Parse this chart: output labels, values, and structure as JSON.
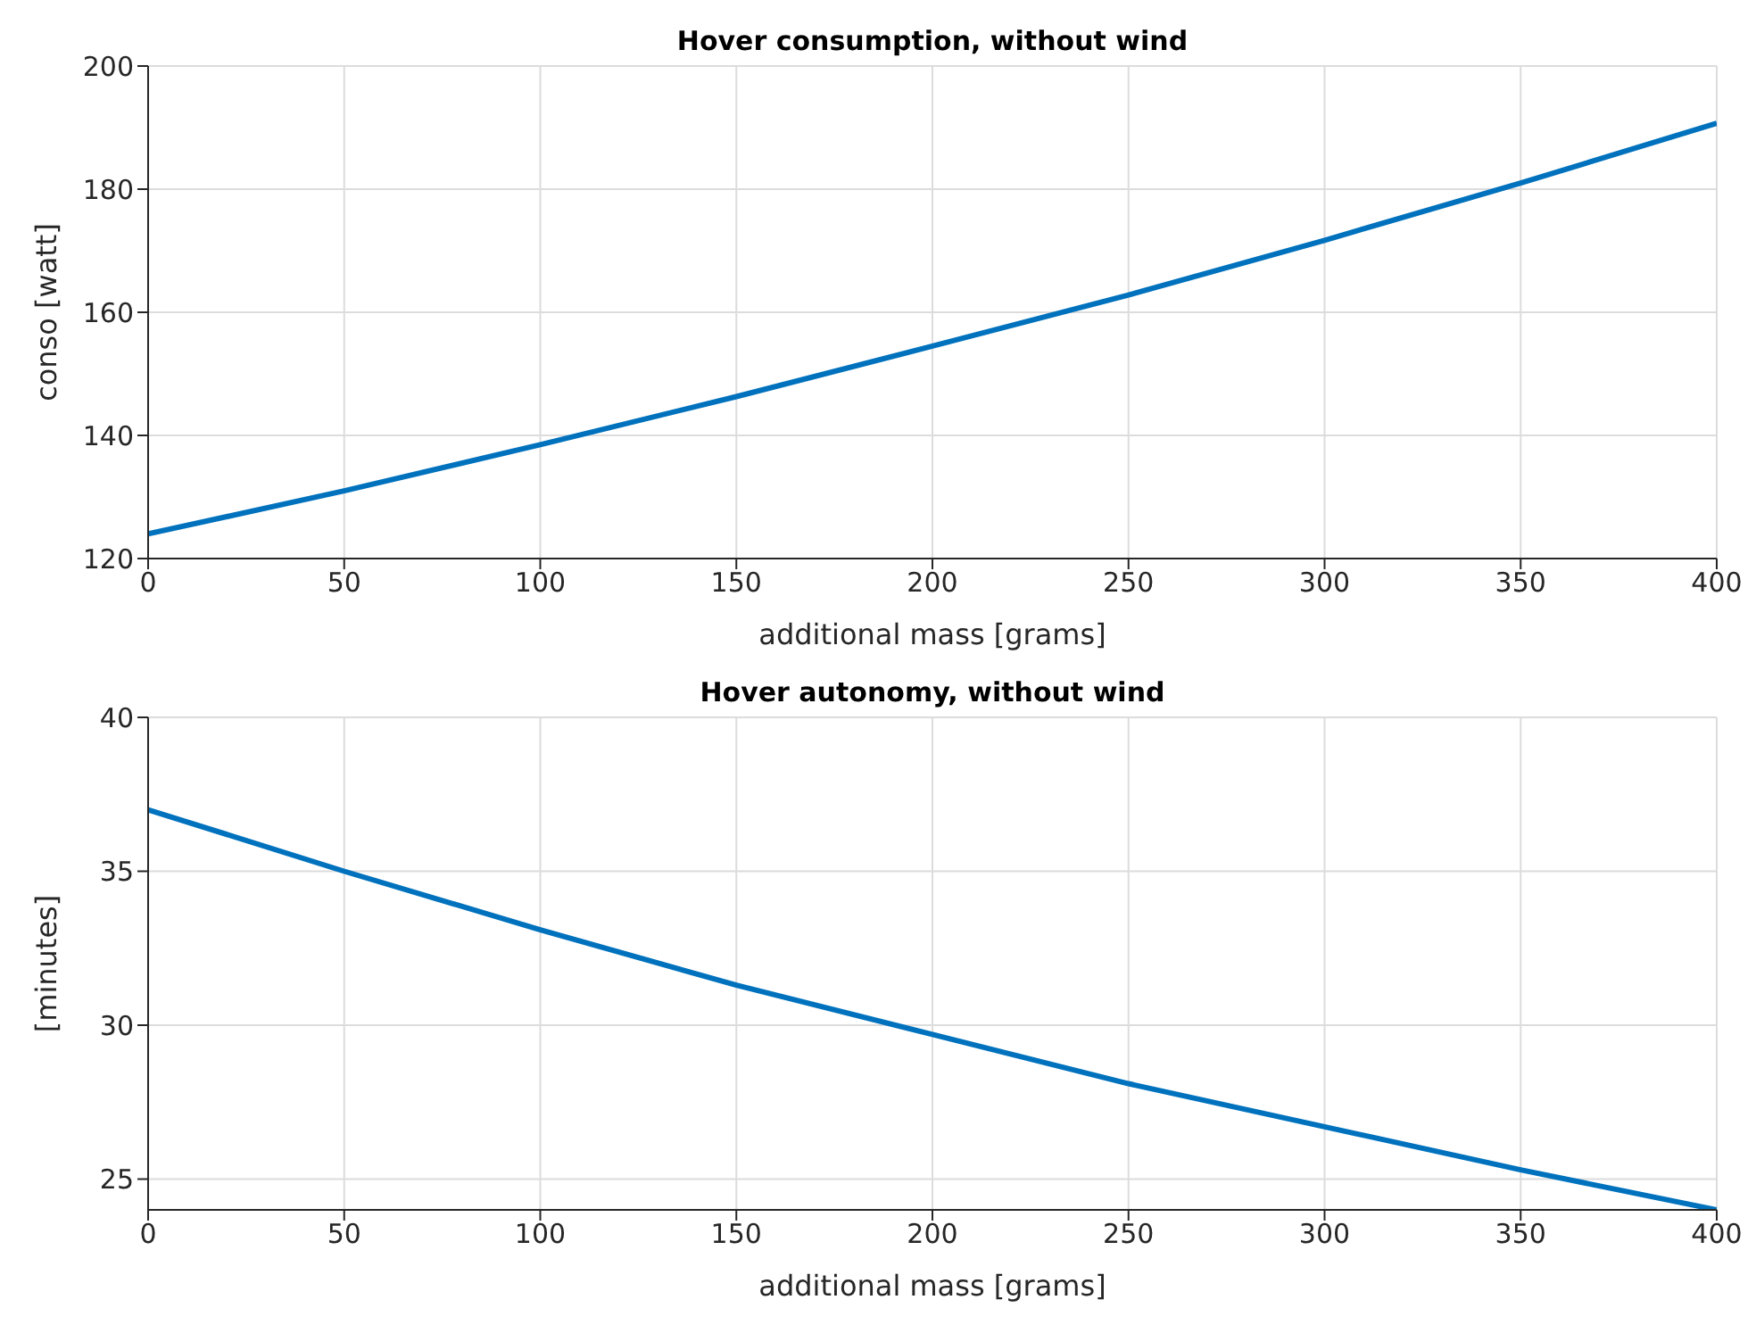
{
  "chart_data": [
    {
      "type": "line",
      "title": "Hover consumption, without wind",
      "xlabel": "additional mass [grams]",
      "ylabel": "conso [watt]",
      "x": [
        0,
        50,
        100,
        150,
        200,
        250,
        300,
        350,
        400
      ],
      "series": [
        {
          "color": "#0072bd",
          "values": [
            124,
            131,
            138.5,
            146.3,
            154.5,
            162.8,
            171.7,
            181,
            190.7
          ]
        }
      ],
      "xlim": [
        0,
        400
      ],
      "xticks": [
        0,
        50,
        100,
        150,
        200,
        250,
        300,
        350,
        400
      ],
      "ylim": [
        120,
        200
      ],
      "yticks": [
        120,
        140,
        160,
        180,
        200
      ],
      "grid": true,
      "marker": "none",
      "line_style": "solid"
    },
    {
      "type": "line",
      "title": "Hover autonomy, without wind",
      "xlabel": "additional mass [grams]",
      "ylabel": "[minutes]",
      "x": [
        0,
        50,
        100,
        150,
        200,
        250,
        300,
        350,
        400
      ],
      "series": [
        {
          "color": "#0072bd",
          "values": [
            37,
            35,
            33.1,
            31.3,
            29.7,
            28.1,
            26.7,
            25.3,
            24
          ]
        }
      ],
      "xlim": [
        0,
        400
      ],
      "xticks": [
        0,
        50,
        100,
        150,
        200,
        250,
        300,
        350,
        400
      ],
      "ylim": [
        24,
        40
      ],
      "yticks": [
        25,
        30,
        35,
        40
      ],
      "grid": true,
      "marker": "none",
      "line_style": "solid"
    }
  ]
}
